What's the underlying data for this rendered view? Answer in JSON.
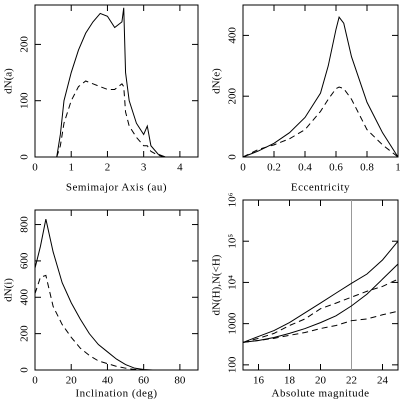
{
  "chart_data": [
    {
      "type": "line",
      "xlabel": "Semimajor Axis (au)",
      "ylabel": "dN(a)",
      "x": [
        0.6,
        0.7,
        0.8,
        1.0,
        1.2,
        1.4,
        1.6,
        1.8,
        2.0,
        2.2,
        2.4,
        2.45,
        2.5,
        2.6,
        2.8,
        3.0,
        3.1,
        3.2,
        3.4,
        3.6,
        4.0
      ],
      "series": [
        {
          "color": "#000000",
          "dashed": false,
          "values": [
            0,
            40,
            100,
            150,
            190,
            220,
            240,
            255,
            250,
            230,
            240,
            265,
            150,
            100,
            60,
            40,
            55,
            20,
            5,
            0,
            0
          ]
        },
        {
          "color": "#000000",
          "dashed": true,
          "values": [
            0,
            20,
            60,
            100,
            125,
            135,
            130,
            125,
            120,
            120,
            130,
            125,
            80,
            55,
            35,
            20,
            20,
            10,
            3,
            0,
            0
          ]
        }
      ],
      "xlim": [
        0,
        4.5
      ],
      "xticks": [
        0,
        1,
        2,
        3,
        4
      ],
      "ylim": [
        0,
        270
      ],
      "yticks": [
        0,
        100,
        200
      ]
    },
    {
      "type": "line",
      "xlabel": "Eccentricity",
      "ylabel": "dN(e)",
      "x": [
        0,
        0.1,
        0.2,
        0.3,
        0.4,
        0.5,
        0.55,
        0.6,
        0.62,
        0.65,
        0.7,
        0.8,
        0.9,
        1.0
      ],
      "series": [
        {
          "color": "#000000",
          "dashed": false,
          "values": [
            0,
            20,
            45,
            80,
            130,
            210,
            300,
            420,
            460,
            440,
            330,
            180,
            80,
            0
          ]
        },
        {
          "color": "#000000",
          "dashed": true,
          "values": [
            0,
            25,
            40,
            60,
            90,
            150,
            190,
            225,
            230,
            225,
            190,
            90,
            40,
            0
          ]
        }
      ],
      "xlim": [
        0,
        1
      ],
      "xticks": [
        0,
        0.2,
        0.4,
        0.6,
        0.8,
        1
      ],
      "ylim": [
        0,
        500
      ],
      "yticks": [
        0,
        200,
        400
      ]
    },
    {
      "type": "line",
      "xlabel": "Inclination (deg)",
      "ylabel": "dN(i)",
      "x": [
        0,
        3,
        6,
        10,
        15,
        20,
        25,
        30,
        35,
        40,
        45,
        50,
        55,
        60,
        65
      ],
      "series": [
        {
          "color": "#000000",
          "dashed": false,
          "values": [
            560,
            680,
            830,
            650,
            480,
            370,
            280,
            200,
            140,
            100,
            60,
            30,
            10,
            3,
            0
          ]
        },
        {
          "color": "#000000",
          "dashed": true,
          "values": [
            420,
            510,
            520,
            350,
            250,
            180,
            120,
            80,
            50,
            35,
            20,
            10,
            3,
            0,
            0
          ]
        }
      ],
      "xlim": [
        0,
        90
      ],
      "xticks": [
        0,
        20,
        40,
        60,
        80
      ],
      "ylim": [
        0,
        880
      ],
      "yticks": [
        0,
        200,
        400,
        600,
        800
      ]
    },
    {
      "type": "line",
      "xlabel": "Absolute magnitude",
      "ylabel": "dN(H),N(<H)",
      "log_y": true,
      "x": [
        15,
        16,
        17,
        18,
        19,
        20,
        21,
        22,
        23,
        24,
        25
      ],
      "series": [
        {
          "color": "#000000",
          "dashed": false,
          "values": [
            350,
            490,
            680,
            1060,
            1830,
            3150,
            5500,
            9500,
            16000,
            35000,
            100000
          ]
        },
        {
          "color": "#000000",
          "dashed": false,
          "values": [
            350,
            390,
            460,
            580,
            760,
            1060,
            1550,
            2700,
            5200,
            12000,
            28000
          ]
        },
        {
          "color": "#000000",
          "dashed": true,
          "values": [
            350,
            440,
            580,
            900,
            1300,
            2300,
            3150,
            4400,
            6100,
            8000,
            12000
          ]
        },
        {
          "color": "#000000",
          "dashed": true,
          "values": [
            350,
            390,
            440,
            520,
            610,
            760,
            900,
            1180,
            1300,
            1640,
            2000
          ]
        }
      ],
      "vline": {
        "x": 22,
        "color": "#999999"
      },
      "xlim": [
        15,
        25
      ],
      "xticks": [
        16,
        18,
        20,
        22,
        24
      ],
      "ylim": [
        75,
        1000000
      ],
      "yticks": [
        100,
        1000,
        {
          "value": 10000,
          "label": "10⁴"
        },
        {
          "value": 100000,
          "label": "10⁵"
        },
        {
          "value": 1000000,
          "label": "10⁶"
        }
      ]
    }
  ]
}
